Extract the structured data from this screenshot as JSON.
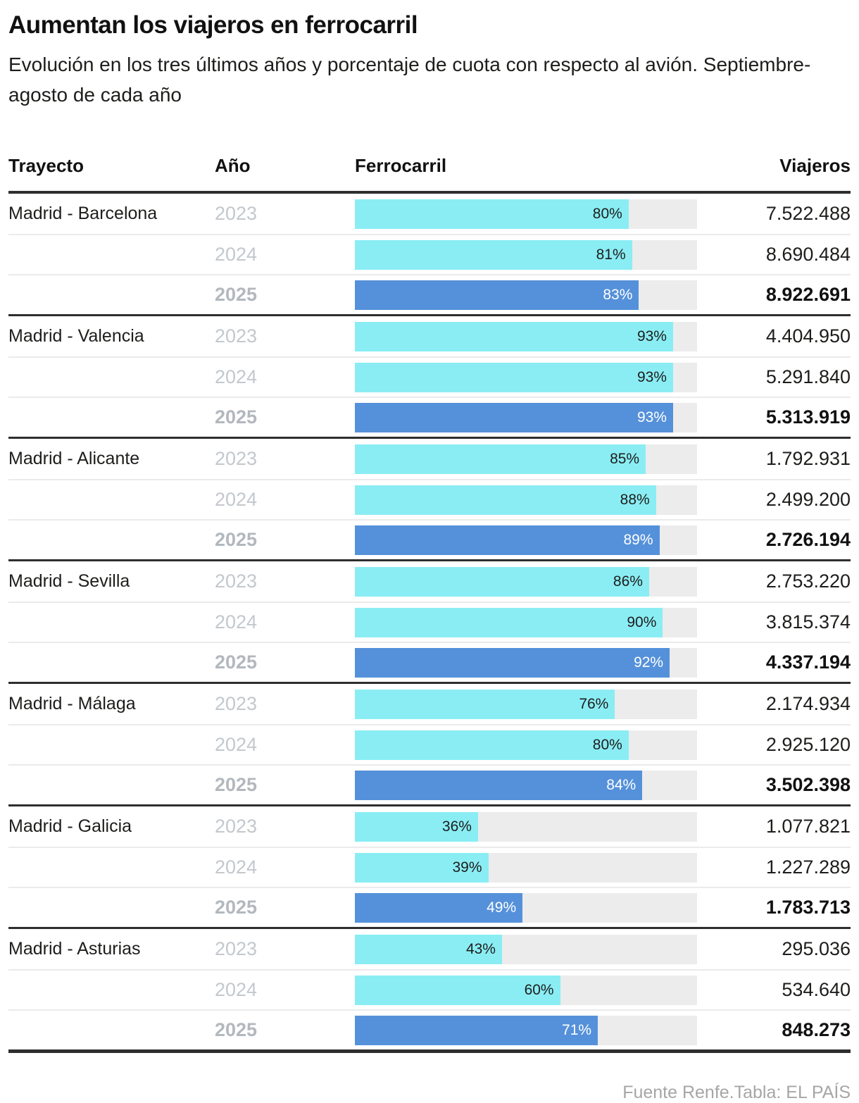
{
  "header": {
    "title": "Aumentan los viajeros en ferrocarril",
    "subtitle": "Evolución en los tres últimos años y porcentaje de cuota con respecto al avión. Septiembre-agosto de cada año"
  },
  "columns": {
    "trayecto": "Trayecto",
    "ano": "Año",
    "ferrocarril": "Ferrocarril",
    "viajeros": "Viajeros"
  },
  "footer": {
    "source": "Fuente Renfe.Tabla: EL PAÍS"
  },
  "colors": {
    "bar_past": "#8aedf4",
    "bar_current": "#5591da",
    "bar_track": "#ececec",
    "rule_dark": "#2e2e2e",
    "year_gray": "#c3c8cd"
  },
  "chart_data": {
    "type": "bar",
    "title": "Aumentan los viajeros en ferrocarril",
    "subtitle": "Evolución en los tres últimos años y porcentaje de cuota con respecto al avión. Septiembre-agosto de cada año",
    "unit_bar": "% cuota del ferrocarril respecto al avión",
    "xlim": [
      0,
      100
    ],
    "groups": [
      {
        "route": "Madrid - Barcelona",
        "rows": [
          {
            "year": "2023",
            "share_pct": 80,
            "share_label": "80%",
            "viajeros": "7.522.488"
          },
          {
            "year": "2024",
            "share_pct": 81,
            "share_label": "81%",
            "viajeros": "8.690.484"
          },
          {
            "year": "2025",
            "share_pct": 83,
            "share_label": "83%",
            "viajeros": "8.922.691"
          }
        ]
      },
      {
        "route": "Madrid - Valencia",
        "rows": [
          {
            "year": "2023",
            "share_pct": 93,
            "share_label": "93%",
            "viajeros": "4.404.950"
          },
          {
            "year": "2024",
            "share_pct": 93,
            "share_label": "93%",
            "viajeros": "5.291.840"
          },
          {
            "year": "2025",
            "share_pct": 93,
            "share_label": "93%",
            "viajeros": "5.313.919"
          }
        ]
      },
      {
        "route": "Madrid - Alicante",
        "rows": [
          {
            "year": "2023",
            "share_pct": 85,
            "share_label": "85%",
            "viajeros": "1.792.931"
          },
          {
            "year": "2024",
            "share_pct": 88,
            "share_label": "88%",
            "viajeros": "2.499.200"
          },
          {
            "year": "2025",
            "share_pct": 89,
            "share_label": "89%",
            "viajeros": "2.726.194"
          }
        ]
      },
      {
        "route": "Madrid - Sevilla",
        "rows": [
          {
            "year": "2023",
            "share_pct": 86,
            "share_label": "86%",
            "viajeros": "2.753.220"
          },
          {
            "year": "2024",
            "share_pct": 90,
            "share_label": "90%",
            "viajeros": "3.815.374"
          },
          {
            "year": "2025",
            "share_pct": 92,
            "share_label": "92%",
            "viajeros": "4.337.194"
          }
        ]
      },
      {
        "route": "Madrid - Málaga",
        "rows": [
          {
            "year": "2023",
            "share_pct": 76,
            "share_label": "76%",
            "viajeros": "2.174.934"
          },
          {
            "year": "2024",
            "share_pct": 80,
            "share_label": "80%",
            "viajeros": "2.925.120"
          },
          {
            "year": "2025",
            "share_pct": 84,
            "share_label": "84%",
            "viajeros": "3.502.398"
          }
        ]
      },
      {
        "route": "Madrid - Galicia",
        "rows": [
          {
            "year": "2023",
            "share_pct": 36,
            "share_label": "36%",
            "viajeros": "1.077.821"
          },
          {
            "year": "2024",
            "share_pct": 39,
            "share_label": "39%",
            "viajeros": "1.227.289"
          },
          {
            "year": "2025",
            "share_pct": 49,
            "share_label": "49%",
            "viajeros": "1.783.713"
          }
        ]
      },
      {
        "route": "Madrid - Asturias",
        "rows": [
          {
            "year": "2023",
            "share_pct": 43,
            "share_label": "43%",
            "viajeros": "295.036"
          },
          {
            "year": "2024",
            "share_pct": 60,
            "share_label": "60%",
            "viajeros": "534.640"
          },
          {
            "year": "2025",
            "share_pct": 71,
            "share_label": "71%",
            "viajeros": "848.273"
          }
        ]
      }
    ]
  }
}
